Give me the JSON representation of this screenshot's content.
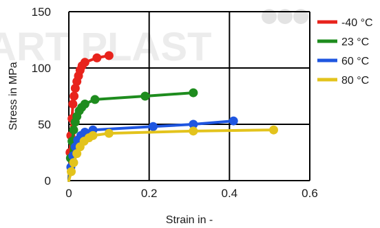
{
  "watermark": {
    "text": "ART PLAST"
  },
  "chart_data": {
    "type": "line",
    "title": "",
    "xlabel": "Strain in -",
    "ylabel": "Stress in MPa",
    "xlim": [
      0,
      0.6
    ],
    "ylim": [
      0,
      150
    ],
    "x_ticks": [
      {
        "value": 0,
        "label": "0"
      },
      {
        "value": 0.2,
        "label": "0.2"
      },
      {
        "value": 0.4,
        "label": "0.4"
      },
      {
        "value": 0.6,
        "label": "0.6"
      }
    ],
    "y_ticks": [
      {
        "value": 0,
        "label": "0"
      },
      {
        "value": 50,
        "label": "50"
      },
      {
        "value": 100,
        "label": "100"
      },
      {
        "value": 150,
        "label": "150"
      }
    ],
    "grid": true,
    "legend_position": "right",
    "series": [
      {
        "name": "-40 °C",
        "color": "#e8231c",
        "points": [
          [
            0,
            0
          ],
          [
            0.003,
            25
          ],
          [
            0.005,
            40
          ],
          [
            0.008,
            55
          ],
          [
            0.01,
            68
          ],
          [
            0.013,
            75
          ],
          [
            0.016,
            82
          ],
          [
            0.02,
            88
          ],
          [
            0.024,
            93
          ],
          [
            0.028,
            98
          ],
          [
            0.033,
            102
          ],
          [
            0.04,
            105
          ],
          [
            0.07,
            109
          ],
          [
            0.1,
            111
          ]
        ]
      },
      {
        "name": "23 °C",
        "color": "#1e8c1e",
        "points": [
          [
            0,
            0
          ],
          [
            0.004,
            20
          ],
          [
            0.008,
            35
          ],
          [
            0.012,
            45
          ],
          [
            0.016,
            52
          ],
          [
            0.02,
            57
          ],
          [
            0.026,
            62
          ],
          [
            0.032,
            65
          ],
          [
            0.04,
            68
          ],
          [
            0.065,
            72
          ],
          [
            0.19,
            75
          ],
          [
            0.31,
            78
          ]
        ]
      },
      {
        "name": "60 °C",
        "color": "#1f56e0",
        "points": [
          [
            0,
            0
          ],
          [
            0.005,
            12
          ],
          [
            0.01,
            22
          ],
          [
            0.016,
            30
          ],
          [
            0.022,
            36
          ],
          [
            0.03,
            40
          ],
          [
            0.04,
            43
          ],
          [
            0.06,
            45
          ],
          [
            0.21,
            48
          ],
          [
            0.31,
            50
          ],
          [
            0.41,
            53
          ]
        ]
      },
      {
        "name": "80 °C",
        "color": "#e3c31c",
        "points": [
          [
            0,
            0
          ],
          [
            0.006,
            8
          ],
          [
            0.012,
            16
          ],
          [
            0.02,
            24
          ],
          [
            0.028,
            30
          ],
          [
            0.038,
            35
          ],
          [
            0.05,
            38
          ],
          [
            0.06,
            40
          ],
          [
            0.1,
            42
          ],
          [
            0.31,
            44
          ],
          [
            0.51,
            45
          ]
        ]
      }
    ]
  }
}
